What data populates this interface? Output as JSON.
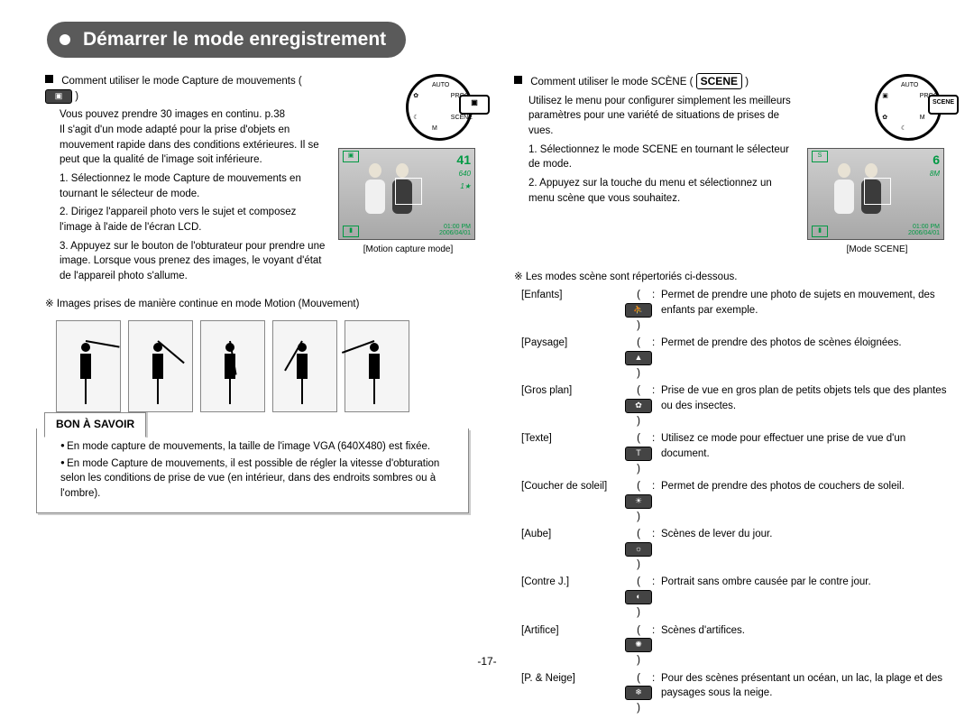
{
  "banner_title": "Démarrer le mode enregistrement",
  "left": {
    "intro1": "Comment utiliser le mode Capture de mouvements (",
    "intro2": ")",
    "intro_lines": "Vous pouvez prendre 30 images en continu. p.38\nIl s'agit d'un mode adapté pour la prise d'objets en mouvement rapide dans des conditions extérieures. Il se peut que la qualité de l'image soit inférieure.",
    "step1": "1. Sélectionnez le mode Capture de mouvements en tournant le sélecteur de mode.",
    "step2": "2. Dirigez l'appareil photo vers le sujet et composez l'image à l'aide de l'écran LCD.",
    "step3": "3. Appuyez sur le bouton de l'obturateur pour prendre une image. Lorsque vous prenez des images, le voyant d'état de l'appareil photo s'allume.",
    "motion_note": "※ Images prises de manière continue en mode Motion (Mouvement)",
    "caption": "[Motion capture mode]",
    "shots": "41",
    "quality": "640",
    "time": "01:00 PM",
    "date": "2006/04/01",
    "box_title": "BON À SAVOIR",
    "box_items": [
      "En mode capture de mouvements, la taille de l'image VGA (640X480) est fixée.",
      "En mode Capture de mouvements, il est possible de régler la vitesse d'obturation selon les conditions de prise de vue (en intérieur, dans des endroits sombres ou à l'ombre)."
    ],
    "dial_modes": [
      "AUTO",
      "PROG",
      "SCENE",
      "M",
      "☾",
      "✿"
    ],
    "dial_sel": "▣",
    "golf_angles": [
      -80,
      -50,
      -10,
      30,
      70
    ]
  },
  "right": {
    "intro1": "Comment utiliser le mode SCÈNE (",
    "scene_word": "SCENE",
    "intro2": ")",
    "intro_lines": "Utilisez le menu pour configurer simplement les meilleurs paramètres pour une variété de situations de prises de vues.",
    "step1": "1. Sélectionnez le mode SCENE en tournant le sélecteur de mode.",
    "step2": "2. Appuyez sur la touche du menu et sélectionnez un menu scène que vous souhaitez.",
    "caption": "[Mode SCENE]",
    "shots": "6",
    "quality": "8M",
    "time": "01:00 PM",
    "date": "2006/04/01",
    "list_intro": "※ Les modes scène sont répertoriés ci-dessous.",
    "dial_modes": [
      "AUTO",
      "PROG",
      "M",
      "☾",
      "✿",
      "▣"
    ],
    "dial_sel": "SCENE",
    "scenes": [
      {
        "label": "[Enfants]",
        "icon": "⛹",
        "desc": "Permet de prendre une photo de sujets en mouvement, des enfants par exemple."
      },
      {
        "label": "[Paysage]",
        "icon": "▲",
        "desc": "Permet de prendre des photos de scènes éloignées."
      },
      {
        "label": "[Gros plan]",
        "icon": "✿",
        "desc": "Prise de vue en gros plan de petits objets tels que des plantes ou des insectes."
      },
      {
        "label": "[Texte]",
        "icon": "T",
        "desc": "Utilisez ce mode pour effectuer une prise de vue d'un document."
      },
      {
        "label": "[Coucher de soleil]",
        "icon": "☀",
        "desc": "Permet de prendre des photos de couchers de soleil."
      },
      {
        "label": "[Aube]",
        "icon": "☼",
        "desc": "Scènes de lever du jour."
      },
      {
        "label": "[Contre J.]",
        "icon": "◐",
        "desc": "Portrait sans ombre causée par le contre jour."
      },
      {
        "label": "[Artifice]",
        "icon": "✺",
        "desc": "Scènes d'artifices."
      },
      {
        "label": "[P. & Neige]",
        "icon": "❄",
        "desc": "Pour des scènes présentant un océan, un lac, la plage et des paysages sous la neige."
      }
    ]
  },
  "page_number": "-17-"
}
